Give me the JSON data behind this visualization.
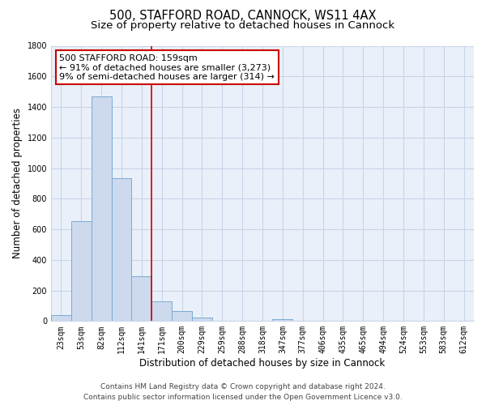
{
  "title": "500, STAFFORD ROAD, CANNOCK, WS11 4AX",
  "subtitle": "Size of property relative to detached houses in Cannock",
  "xlabel": "Distribution of detached houses by size in Cannock",
  "ylabel": "Number of detached properties",
  "bar_labels": [
    "23sqm",
    "53sqm",
    "82sqm",
    "112sqm",
    "141sqm",
    "171sqm",
    "200sqm",
    "229sqm",
    "259sqm",
    "288sqm",
    "318sqm",
    "347sqm",
    "377sqm",
    "406sqm",
    "435sqm",
    "465sqm",
    "494sqm",
    "524sqm",
    "553sqm",
    "583sqm",
    "612sqm"
  ],
  "bar_values": [
    40,
    655,
    1468,
    935,
    295,
    130,
    65,
    22,
    0,
    0,
    0,
    15,
    0,
    0,
    0,
    0,
    0,
    0,
    0,
    0,
    0
  ],
  "bar_color": "#cdd9ed",
  "bar_edge_color": "#7baad4",
  "ylim": [
    0,
    1800
  ],
  "yticks": [
    0,
    200,
    400,
    600,
    800,
    1000,
    1200,
    1400,
    1600,
    1800
  ],
  "vline_x": 4.5,
  "vline_color": "#cc0000",
  "annotation_title": "500 STAFFORD ROAD: 159sqm",
  "annotation_line1": "← 91% of detached houses are smaller (3,273)",
  "annotation_line2": "9% of semi-detached houses are larger (314) →",
  "footer_line1": "Contains HM Land Registry data © Crown copyright and database right 2024.",
  "footer_line2": "Contains public sector information licensed under the Open Government Licence v3.0.",
  "background_color": "#ffffff",
  "grid_color": "#c8d4e8",
  "title_fontsize": 10.5,
  "subtitle_fontsize": 9.5,
  "tick_fontsize": 7.0,
  "ylabel_fontsize": 8.5,
  "xlabel_fontsize": 8.5,
  "annotation_fontsize": 8.0,
  "footer_fontsize": 6.5
}
